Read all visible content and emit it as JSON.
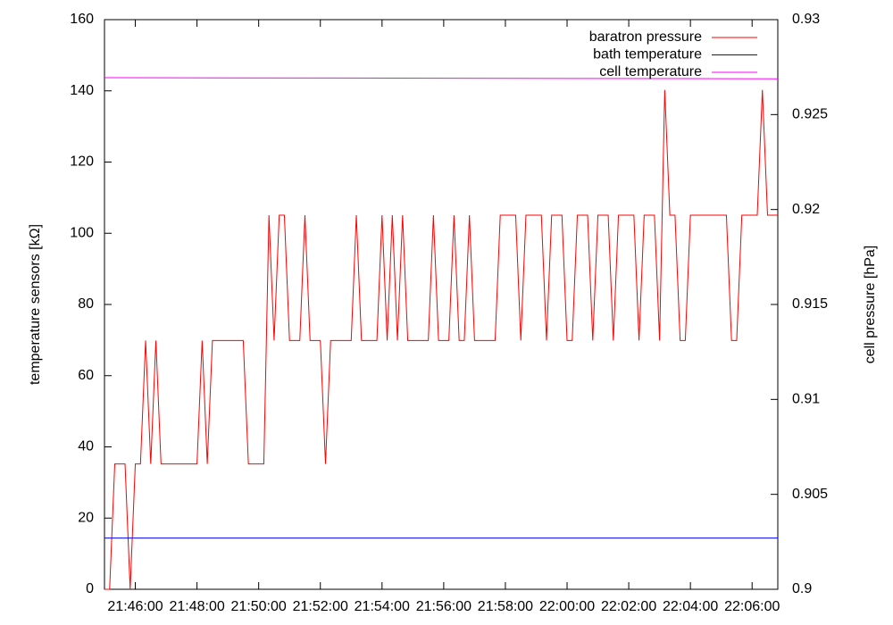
{
  "chart_data": {
    "type": "line",
    "ylabel": "temperature sensors [kΩ]",
    "y2label": "cell pressure [hPa]",
    "xlim": [
      "21:45:00",
      "22:06:50"
    ],
    "xticks": [
      "21:46:00",
      "21:48:00",
      "21:50:00",
      "21:52:00",
      "21:54:00",
      "21:56:00",
      "21:58:00",
      "22:00:00",
      "22:02:00",
      "22:04:00",
      "22:06:00"
    ],
    "ylim": [
      0,
      160
    ],
    "yticks": [
      0,
      20,
      40,
      60,
      80,
      100,
      120,
      140,
      160
    ],
    "y2lim": [
      0.9,
      0.93
    ],
    "y2ticks": [
      0.9,
      0.905,
      0.91,
      0.915,
      0.92,
      0.925,
      0.93
    ],
    "legend": "top-right",
    "series": [
      {
        "name": "baratron pressure",
        "color": "#ff0000",
        "axis": "y2",
        "x": [
          "21:45:00",
          "21:45:10",
          "21:45:20",
          "21:45:40",
          "21:45:50",
          "21:46:00",
          "21:46:10",
          "21:46:20",
          "21:46:30",
          "21:46:40",
          "21:46:50",
          "21:48:00",
          "21:48:10",
          "21:48:20",
          "21:48:30",
          "21:49:30",
          "21:49:40",
          "21:50:10",
          "21:50:20",
          "21:50:30",
          "21:50:40",
          "21:50:50",
          "21:51:00",
          "21:51:20",
          "21:51:30",
          "21:51:40",
          "21:52:00",
          "21:52:10",
          "21:52:20",
          "21:53:00",
          "21:53:10",
          "21:53:20",
          "21:53:50",
          "21:54:00",
          "21:54:10",
          "21:54:20",
          "21:54:30",
          "21:54:40",
          "21:54:50",
          "21:55:30",
          "21:55:40",
          "21:55:50",
          "21:56:10",
          "21:56:20",
          "21:56:30",
          "21:56:40",
          "21:56:50",
          "21:57:00",
          "21:57:40",
          "21:57:50",
          "21:58:20",
          "21:58:30",
          "21:58:40",
          "21:59:10",
          "21:59:20",
          "21:59:30",
          "21:59:50",
          "22:00:00",
          "22:00:10",
          "22:00:20",
          "22:00:40",
          "22:00:50",
          "22:01:00",
          "22:01:20",
          "22:01:30",
          "22:01:40",
          "22:02:10",
          "22:02:20",
          "22:02:30",
          "22:02:50",
          "22:03:00",
          "22:03:10",
          "22:03:20",
          "22:03:30",
          "22:03:40",
          "22:03:50",
          "22:04:00",
          "22:05:10",
          "22:05:20",
          "22:05:30",
          "22:05:40",
          "22:06:10",
          "22:06:20",
          "22:06:30",
          "22:06:50"
        ],
        "values": [
          0.9,
          0.9,
          0.9066,
          0.9066,
          0.9,
          0.9066,
          0.9066,
          0.9131,
          0.9066,
          0.9131,
          0.9066,
          0.9066,
          0.9131,
          0.9066,
          0.9131,
          0.9131,
          0.9066,
          0.9066,
          0.9197,
          0.9131,
          0.9197,
          0.9197,
          0.9131,
          0.9131,
          0.9197,
          0.9131,
          0.9131,
          0.9066,
          0.9131,
          0.9131,
          0.9197,
          0.9131,
          0.9131,
          0.9197,
          0.9131,
          0.9197,
          0.9131,
          0.9197,
          0.9131,
          0.9131,
          0.9197,
          0.9131,
          0.9131,
          0.9197,
          0.9131,
          0.9131,
          0.9197,
          0.9131,
          0.9131,
          0.9197,
          0.9197,
          0.9131,
          0.9197,
          0.9197,
          0.9131,
          0.9197,
          0.9197,
          0.9131,
          0.9131,
          0.9197,
          0.9197,
          0.9131,
          0.9197,
          0.9197,
          0.9131,
          0.9197,
          0.9197,
          0.9131,
          0.9197,
          0.9197,
          0.9131,
          0.9263,
          0.9197,
          0.9197,
          0.9131,
          0.9131,
          0.9197,
          0.9197,
          0.9131,
          0.9131,
          0.9197,
          0.9197,
          0.9263,
          0.9197,
          0.9197
        ]
      },
      {
        "name": "bath temperature",
        "color": "#0000ff",
        "axis": "y",
        "x": [
          "21:45:00",
          "22:06:50"
        ],
        "values": [
          14.4,
          14.4
        ]
      },
      {
        "name": "cell temperature",
        "color": "#ff00ff",
        "axis": "y",
        "x": [
          "21:45:00",
          "22:06:50"
        ],
        "values": [
          143.7,
          143.4
        ]
      }
    ]
  }
}
